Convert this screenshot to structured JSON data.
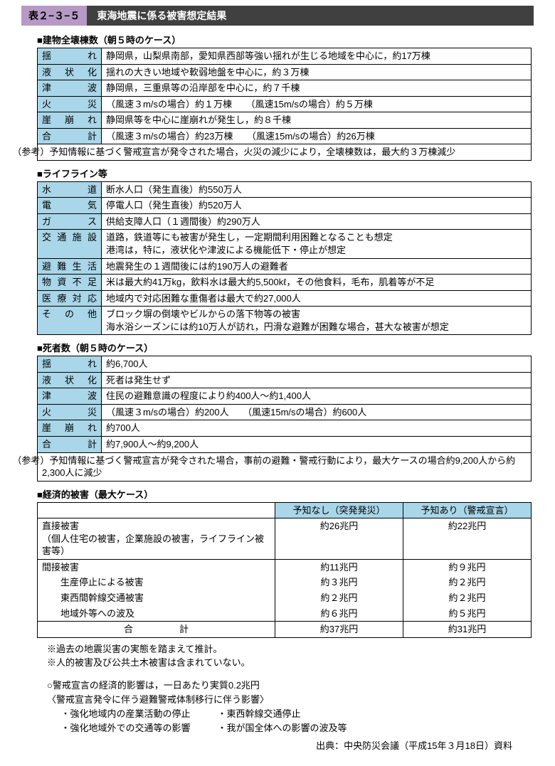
{
  "colors": {
    "title_tag_bg": "#b799c6",
    "title_bar_bg": "#404040",
    "title_bar_fg": "#ffffff",
    "rowhead_bg": "#a9d6e8",
    "border": "#000000",
    "body_bg": "#ffffff"
  },
  "title": {
    "tag": "表２−３−５",
    "text": "東海地震に係る被害想定結果"
  },
  "section1": {
    "heading": "■建物全壊棟数（朝５時のケース）",
    "rows": [
      {
        "label": "揺　　れ",
        "value": "静岡県，山梨県南部，愛知県西部等強い揺れが生じる地域を中心に，約17万棟"
      },
      {
        "label": "液 状 化",
        "value": "揺れの大きい地域や軟弱地盤を中心に，約３万棟"
      },
      {
        "label": "津　　波",
        "value": "静岡県，三重県等の沿岸部を中心に，約７千棟"
      },
      {
        "label": "火　　災",
        "value": "（風速３m/sの場合）約１万棟　　（風速15m/sの場合）約５万棟"
      },
      {
        "label": "崖 崩 れ",
        "value": "静岡県等を中心に崖崩れが発生し，約８千棟"
      },
      {
        "label": "合　　計",
        "value": "（風速３m/sの場合）約23万棟　　（風速15m/sの場合）約26万棟"
      }
    ],
    "note": "（参考）予知情報に基づく警戒宣言が発令された場合，火災の減少により，全壊棟数は，最大約３万棟減少"
  },
  "section2": {
    "heading": "■ライフライン等",
    "rows": [
      {
        "label": "水　　道",
        "value": "断水人口（発生直後）約550万人"
      },
      {
        "label": "電　　気",
        "value": "停電人口（発生直後）約520万人"
      },
      {
        "label": "ガ　　ス",
        "value": "供給支障人口（１週間後）約290万人"
      },
      {
        "label": "交通施設",
        "value": "道路，鉄道等にも被害が発生し，一定期間利用困難となることも想定\n港湾は，特に，液状化や津波による機能低下・停止が想定"
      },
      {
        "label": "避難生活",
        "value": "地震発生の１週間後には約190万人の避難者"
      },
      {
        "label": "物資不足",
        "value": "米は最大約41万kg，飲料水は最大約5,500kℓ，その他食料，毛布，肌着等が不足"
      },
      {
        "label": "医療対応",
        "value": "地域内で対応困難な重傷者は最大で約27,000人"
      },
      {
        "label": "そ の 他",
        "value": "ブロック塀の倒壊やビルからの落下物等の被害\n海水浴シーズンには約10万人が訪れ，円滑な避難が困難な場合，甚大な被害が想定"
      }
    ]
  },
  "section3": {
    "heading": "■死者数（朝５時のケース）",
    "rows": [
      {
        "label": "揺　　れ",
        "value": "約6,700人"
      },
      {
        "label": "液 状 化",
        "value": "死者は発生せず"
      },
      {
        "label": "津　　波",
        "value": "住民の避難意識の程度により約400人〜約1,400人"
      },
      {
        "label": "火　　災",
        "value": "（風速３m/sの場合）約200人　　（風速15m/sの場合）約600人"
      },
      {
        "label": "崖 崩 れ",
        "value": "約700人"
      },
      {
        "label": "合　　計",
        "value": "約7,900人〜約9,200人"
      }
    ],
    "note": "（参考）予知情報に基づく警戒宣言が発令された場合，事前の避難・警戒行動により，最大ケースの場合約9,200人から約2,300人に減少"
  },
  "section4": {
    "heading": "■経済的被害（最大ケース）",
    "col_headers": [
      "",
      "予知なし（突発発災）",
      "予知あり（警戒宣言）"
    ],
    "rows": [
      {
        "label": "直接被害\n（個人住宅の被害，企業施設の被害，ライフライン被害等）",
        "v1": "約26兆円",
        "v2": "約22兆円"
      },
      {
        "label": "間接被害",
        "v1": "約11兆円",
        "v2": "約９兆円"
      },
      {
        "label": "　　生産停止による被害",
        "v1": "約３兆円",
        "v2": "約２兆円",
        "sub": true
      },
      {
        "label": "　　東西間幹線交通被害",
        "v1": "約２兆円",
        "v2": "約２兆円",
        "sub": true
      },
      {
        "label": "　　地域外等への波及",
        "v1": "約６兆円",
        "v2": "約５兆円",
        "sub": true
      }
    ],
    "total": {
      "label": "合　　　　　計",
      "v1": "約37兆円",
      "v2": "約31兆円"
    }
  },
  "footnotes": [
    "※過去の地震災害の実態を踏まえて推計。",
    "※人的被害及び公共土木被害は含まれていない。"
  ],
  "econ_notes": {
    "line1": "○警戒宣言の経済的影響は，一日あたり実質0.2兆円",
    "line2": "〈警戒宣言発令に伴う避難警戒体制移行に伴う影響〉",
    "bullets": [
      [
        "・強化地域内の産業活動の停止",
        "・東西幹線交通停止"
      ],
      [
        "・強化地域外での交通等の影響",
        "・我が国全体への影響の波及等"
      ]
    ]
  },
  "source": "出典：中央防災会議（平成15年３月18日）資料"
}
